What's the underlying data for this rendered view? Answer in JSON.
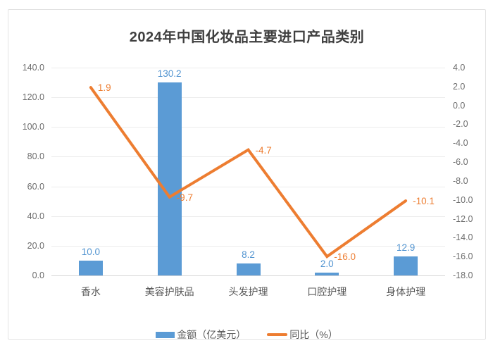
{
  "title": "2024年中国化妆品主要进口产品类别",
  "chart_data": {
    "type": "bar",
    "subtype": "combo-bar-line-dual-axis",
    "categories": [
      "香水",
      "美容护肤品",
      "头发护理",
      "口腔护理",
      "身体护理"
    ],
    "series": [
      {
        "name": "金额（亿美元）",
        "type": "bar",
        "axis": "left",
        "color": "#5B9BD5",
        "values": [
          10.0,
          130.2,
          8.2,
          2.0,
          12.9
        ],
        "labels": [
          "10.0",
          "130.2",
          "8.2",
          "2.0",
          "12.9"
        ]
      },
      {
        "name": "同比（%）",
        "type": "line",
        "axis": "right",
        "color": "#ED7D31",
        "values": [
          1.9,
          -9.7,
          -4.7,
          -16.0,
          -10.1
        ],
        "labels": [
          "1.9",
          "-9.7",
          "-4.7",
          "-16.0",
          "-10.1"
        ]
      }
    ],
    "left_axis": {
      "min": 0,
      "max": 140,
      "step": 20,
      "tick_labels": [
        "140.0",
        "120.0",
        "100.0",
        "80.0",
        "60.0",
        "40.0",
        "20.0",
        "0.0"
      ]
    },
    "right_axis": {
      "min": -18,
      "max": 4,
      "step": 2,
      "tick_labels": [
        "4.0",
        "2.0",
        "0.0",
        "-2.0",
        "-4.0",
        "-6.0",
        "-8.0",
        "-10.0",
        "-12.0",
        "-14.0",
        "-16.0",
        "-18.0"
      ]
    },
    "grid": true,
    "legend_position": "bottom",
    "title": "2024年中国化妆品主要进口产品类别"
  },
  "legend": {
    "items": [
      {
        "label": "金额（亿美元）",
        "swatch": "bar",
        "color": "#5B9BD5"
      },
      {
        "label": "同比（%）",
        "swatch": "line",
        "color": "#ED7D31"
      }
    ]
  },
  "colors": {
    "bar": "#5B9BD5",
    "bar_label": "#5093d0",
    "line": "#ED7D31",
    "line_label": "#ED7D31",
    "axis_text": "#6d6d6d",
    "gridline": "#ececec",
    "axis_line": "#d6d6d6",
    "title_text": "#3f3f3f",
    "frame_border": "#e2e2e2"
  }
}
